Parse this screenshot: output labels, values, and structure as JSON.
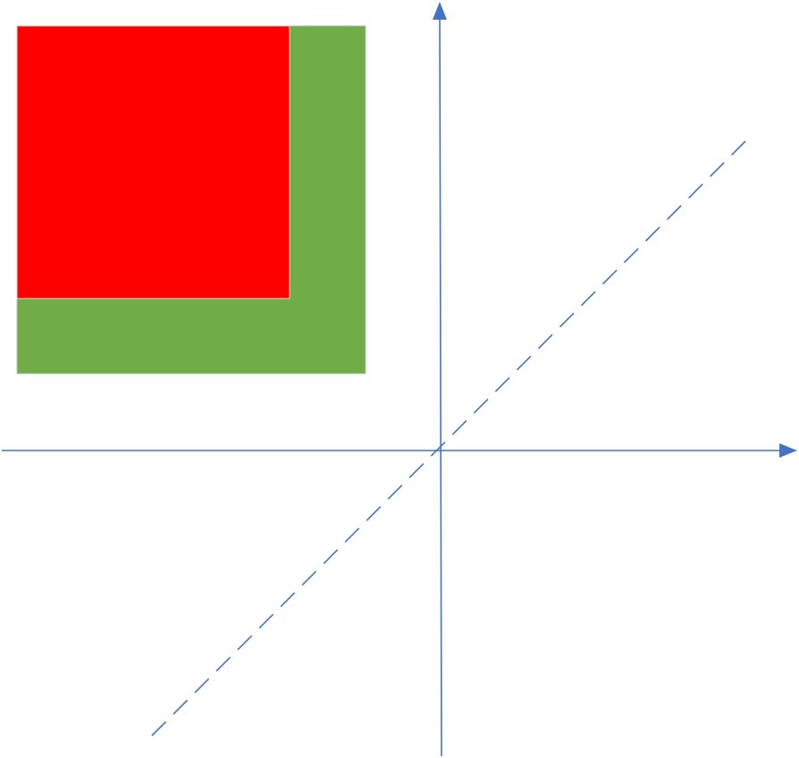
{
  "colors": {
    "axis": "#4472C4",
    "diagonal": "#4472C4",
    "outer_square": "#70AD47",
    "inner_square": "#FF0000",
    "inner_square_border": "#D9D9D9",
    "outer_square_border": "#BFBFBF"
  },
  "shapes": {
    "outer_square": "green-square",
    "inner_square": "red-square",
    "x_axis": "horizontal-axis-with-arrow",
    "y_axis": "vertical-axis-with-arrow",
    "diagonal": "dashed-diagonal-line"
  }
}
